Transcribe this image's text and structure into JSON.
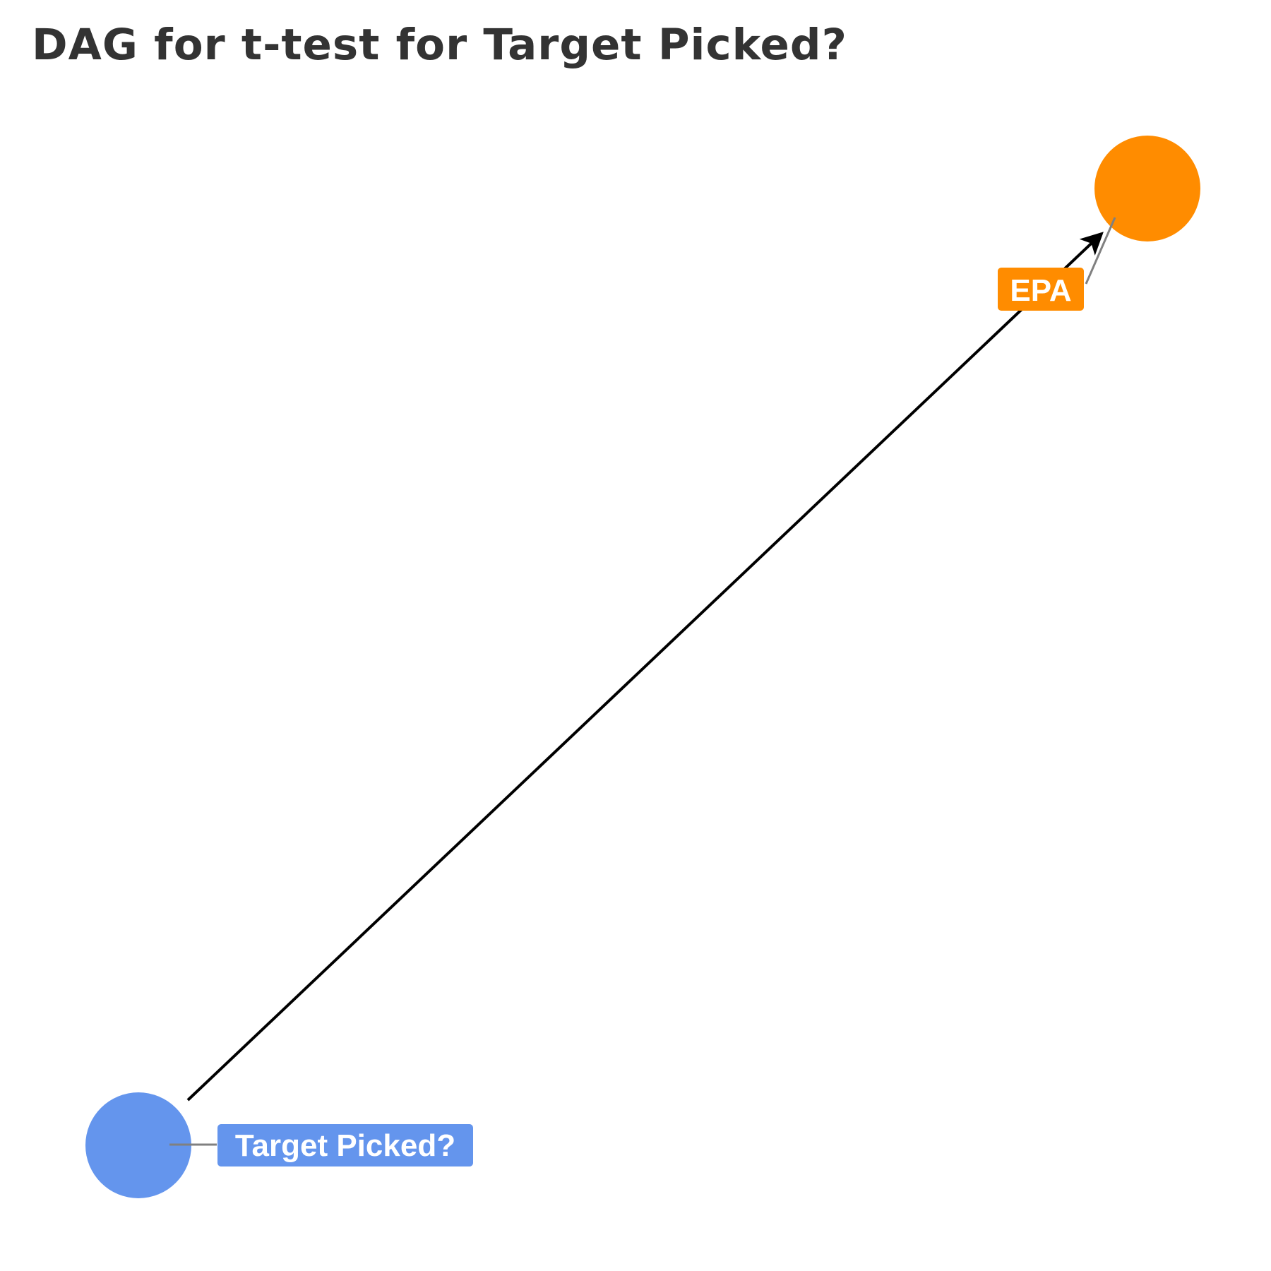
{
  "title": "DAG for t-test for Target Picked?",
  "nodes": [
    {
      "id": "target",
      "label": "Target Picked?",
      "color": "#6495ED"
    },
    {
      "id": "epa",
      "label": "EPA",
      "color": "#FF8C00"
    }
  ],
  "edges": [
    {
      "from": "target",
      "to": "epa",
      "directed": true
    }
  ],
  "colors": {
    "edge": "#000000",
    "leader": "#808080",
    "title": "#333333",
    "label_text": "#ffffff"
  }
}
